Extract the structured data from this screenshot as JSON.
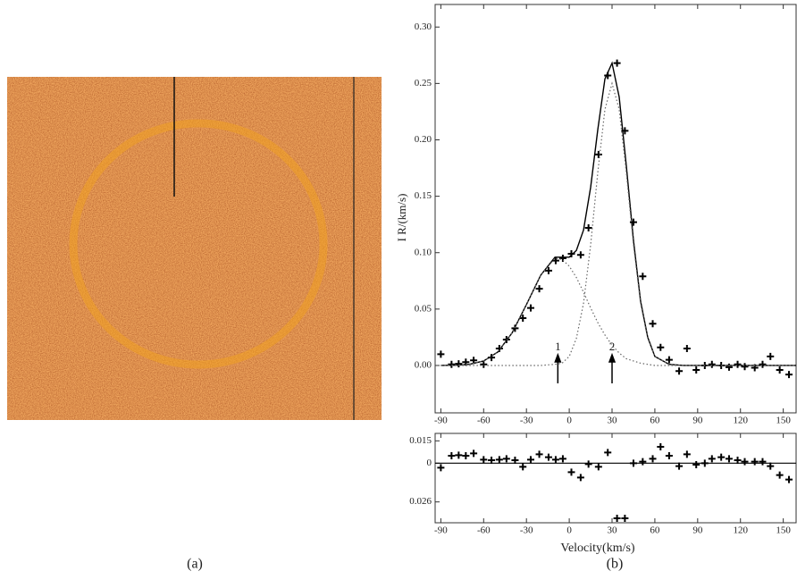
{
  "figure": {
    "captions": [
      "(a)",
      "(b)"
    ]
  },
  "chart_data": [
    {
      "type": "line",
      "ylabel": "I R/(km/s)",
      "xlim": [
        -94,
        159
      ],
      "ylim": [
        -0.042,
        0.32
      ],
      "xticks": [
        -90,
        -60,
        -30,
        0,
        30,
        60,
        90,
        120,
        150
      ],
      "yticks": [
        {
          "value": 0,
          "label": "0.00"
        },
        {
          "value": 0.05,
          "label": "0.05"
        },
        {
          "value": 0.1,
          "label": "0.10"
        },
        {
          "value": 0.15,
          "label": "0.15"
        },
        {
          "value": 0.2,
          "label": "0.20"
        },
        {
          "value": 0.25,
          "label": "0.25"
        },
        {
          "value": 0.3,
          "label": "0.30"
        }
      ],
      "series": [
        {
          "style": "cross",
          "color": "#000000",
          "x": [
            -90,
            -82.5,
            -77.5,
            -72.5,
            -67,
            -60,
            -54.5,
            -49,
            -44,
            -38,
            -32.5,
            -27,
            -21,
            -14.5,
            -9.5,
            -4.5,
            1.5,
            8,
            13.5,
            20.5,
            27,
            33.5,
            39,
            45,
            51.5,
            58.5,
            64,
            70,
            77,
            82.5,
            89,
            95,
            100,
            106.5,
            112,
            118,
            123,
            130,
            135.5,
            141,
            147.5,
            154
          ],
          "values": [
            0.01,
            0.001,
            0.0015,
            0.003,
            0.0045,
            0.001,
            0.007,
            0.015,
            0.023,
            0.033,
            0.042,
            0.051,
            0.068,
            0.084,
            0.093,
            0.095,
            0.099,
            0.098,
            0.122,
            0.187,
            0.257,
            0.268,
            0.208,
            0.127,
            0.079,
            0.037,
            0.016,
            0.005,
            -0.005,
            0.015,
            -0.004,
            0,
            0.001,
            0,
            -0.0015,
            0.001,
            -0.001,
            -0.002,
            0.001,
            0.008,
            -0.004,
            -0.008
          ]
        },
        {
          "style": "solid",
          "color": "#000000",
          "x": [
            -90,
            -80,
            -70,
            -60,
            -50,
            -40,
            -30,
            -20,
            -10,
            -5,
            0,
            5,
            10,
            15,
            20,
            25,
            30,
            35,
            40,
            45,
            50,
            55,
            60,
            70,
            80,
            90,
            100,
            110,
            120,
            130,
            140,
            150,
            159
          ],
          "values": [
            0,
            0.0002,
            0.001,
            0.004,
            0.012,
            0.029,
            0.054,
            0.08,
            0.096,
            0.096,
            0.096,
            0.102,
            0.12,
            0.158,
            0.209,
            0.254,
            0.268,
            0.238,
            0.177,
            0.111,
            0.057,
            0.025,
            0.008,
            0.001,
            0,
            0,
            0,
            0,
            0,
            0,
            0,
            0,
            0
          ]
        },
        {
          "style": "dotted",
          "color": "#666666",
          "x": [
            -90,
            -80,
            -70,
            -60,
            -50,
            -40,
            -30,
            -20,
            -10,
            -5,
            0,
            5,
            10,
            15,
            20,
            25,
            30,
            35,
            40,
            45,
            50,
            55,
            60,
            70,
            80,
            90,
            100,
            110,
            120,
            130,
            140,
            150,
            159
          ],
          "values": [
            0,
            0.0002,
            0.0011,
            0.004,
            0.0121,
            0.0288,
            0.054,
            0.08,
            0.095,
            0.094,
            0.088,
            0.078,
            0.065,
            0.051,
            0.038,
            0.027,
            0.018,
            0.011,
            0.006,
            0.004,
            0.002,
            0.001,
            0,
            0,
            0,
            0,
            0,
            0,
            0,
            0,
            0,
            0,
            0
          ]
        },
        {
          "style": "dotted",
          "color": "#666666",
          "x": [
            -90,
            -80,
            -70,
            -60,
            -50,
            -40,
            -30,
            -20,
            -10,
            -5,
            0,
            5,
            10,
            15,
            20,
            25,
            30,
            35,
            40,
            45,
            50,
            55,
            60,
            70,
            80,
            90,
            100,
            110,
            120,
            130,
            140,
            150,
            159
          ],
          "values": [
            0,
            0,
            0,
            0,
            0,
            0,
            0,
            0,
            0.001,
            0.002,
            0.008,
            0.024,
            0.055,
            0.107,
            0.171,
            0.227,
            0.25,
            0.227,
            0.171,
            0.107,
            0.055,
            0.024,
            0.008,
            0.001,
            0,
            0,
            0,
            0,
            0,
            0,
            0,
            0,
            0
          ]
        }
      ],
      "annotations": [
        {
          "text": "1",
          "x": -8
        },
        {
          "text": "2",
          "x": 30
        }
      ]
    },
    {
      "type": "line",
      "xlabel": "Velocity(km/s)",
      "xlim": [
        -94,
        159
      ],
      "ylim": [
        -0.04,
        0.02
      ],
      "xticks": [
        -90,
        -60,
        -30,
        0,
        30,
        60,
        90,
        120,
        150
      ],
      "yticks": [
        0.015,
        0,
        {
          "value": -0.026,
          "label": "0.026"
        }
      ],
      "hline": 0,
      "series": [
        {
          "style": "cross",
          "color": "#000000",
          "x": [
            -90,
            -82.5,
            -77.5,
            -72.5,
            -67,
            -60,
            -54.5,
            -49,
            -44,
            -38,
            -32.5,
            -27,
            -21,
            -14.5,
            -9.5,
            -4.5,
            1.5,
            8,
            13.5,
            20.5,
            27,
            33.5,
            39,
            45,
            51.5,
            58.5,
            64,
            70,
            77,
            82.5,
            89,
            95,
            100,
            106.5,
            112,
            118,
            123,
            130,
            135.5,
            141,
            147.5,
            154
          ],
          "values": [
            -0.003,
            0.005,
            0.0054,
            0.005,
            0.0066,
            0.0024,
            0.002,
            0.0024,
            0.003,
            0.002,
            -0.0024,
            0.0024,
            0.006,
            0.004,
            0.0024,
            0.003,
            -0.006,
            -0.0096,
            -0.0006,
            -0.0024,
            0.0072,
            -0.037,
            -0.037,
            0,
            0.001,
            0.003,
            0.011,
            0.005,
            -0.002,
            0.006,
            -0.001,
            0,
            0.003,
            0.004,
            0.003,
            0.002,
            0.001,
            0.001,
            0.001,
            -0.002,
            -0.008,
            -0.011
          ]
        }
      ]
    }
  ]
}
